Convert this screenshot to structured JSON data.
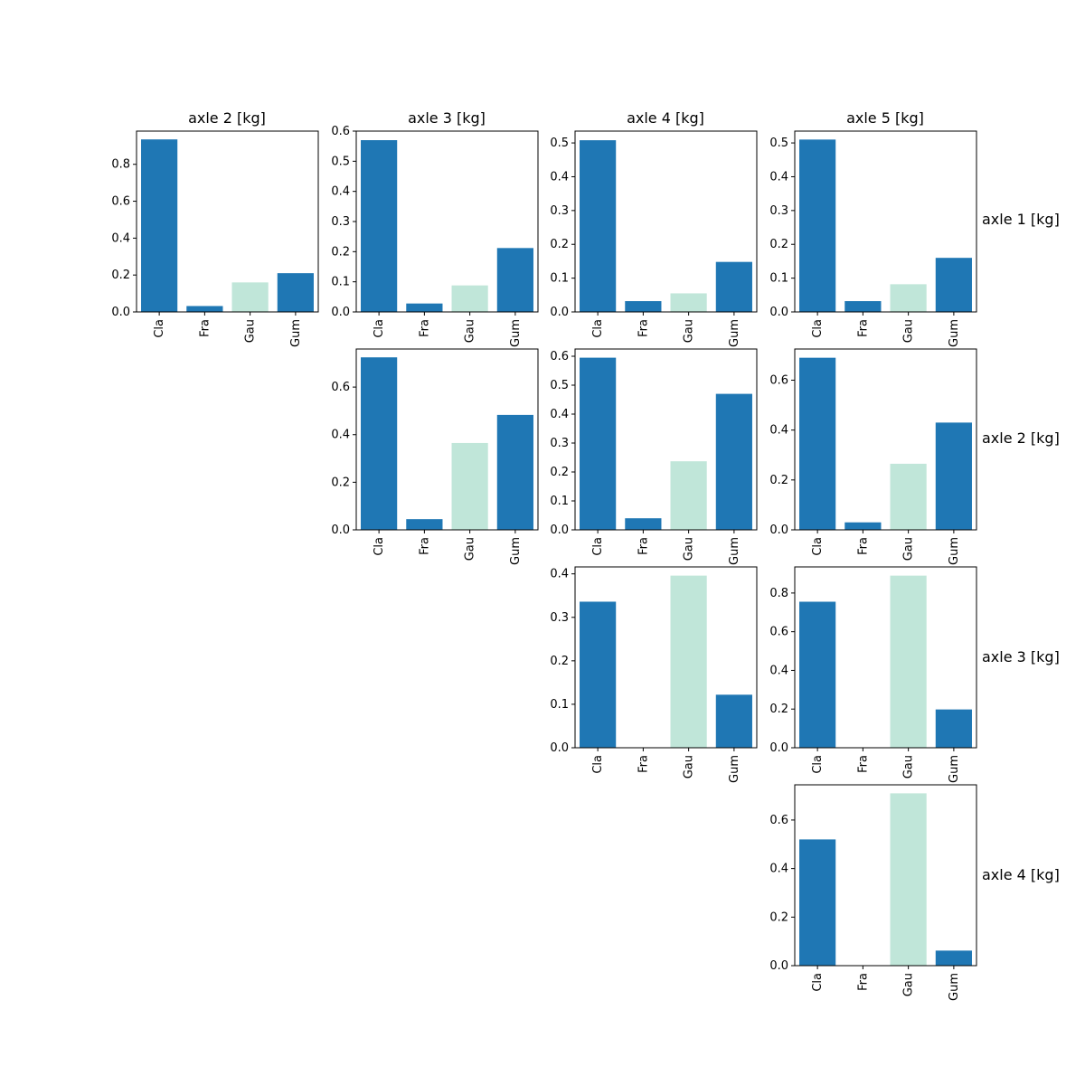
{
  "figure": {
    "column_titles": [
      "axle 2 [kg]",
      "axle 3 [kg]",
      "axle 4 [kg]",
      "axle 5 [kg]"
    ],
    "row_titles": [
      "axle 1 [kg]",
      "axle 2 [kg]",
      "axle 3 [kg]",
      "axle 4 [kg]"
    ]
  },
  "colors": {
    "primary": "#1f77b4",
    "highlight": "#c0e6d9"
  },
  "chart_data": [
    {
      "type": "bar",
      "row": 0,
      "col": 0,
      "categories": [
        "Cla",
        "Fra",
        "Gau",
        "Gum"
      ],
      "values": [
        0.935,
        0.032,
        0.16,
        0.21
      ],
      "ylim": [
        0,
        0.98
      ],
      "yticks": [
        0.0,
        0.2,
        0.4,
        0.6,
        0.8
      ],
      "highlight_category": "Gau",
      "grid": false
    },
    {
      "type": "bar",
      "row": 0,
      "col": 1,
      "categories": [
        "Cla",
        "Fra",
        "Gau",
        "Gum"
      ],
      "values": [
        0.57,
        0.028,
        0.088,
        0.212
      ],
      "ylim": [
        0,
        0.6
      ],
      "yticks": [
        0.0,
        0.1,
        0.2,
        0.3,
        0.4,
        0.5,
        0.6
      ],
      "highlight_category": "Gau",
      "grid": false
    },
    {
      "type": "bar",
      "row": 0,
      "col": 2,
      "categories": [
        "Cla",
        "Fra",
        "Gau",
        "Gum"
      ],
      "values": [
        0.508,
        0.032,
        0.055,
        0.148
      ],
      "ylim": [
        0,
        0.535
      ],
      "yticks": [
        0.0,
        0.1,
        0.2,
        0.3,
        0.4,
        0.5
      ],
      "highlight_category": "Gau",
      "grid": false
    },
    {
      "type": "bar",
      "row": 0,
      "col": 3,
      "categories": [
        "Cla",
        "Fra",
        "Gau",
        "Gum"
      ],
      "values": [
        0.51,
        0.032,
        0.082,
        0.16
      ],
      "ylim": [
        0,
        0.535
      ],
      "yticks": [
        0.0,
        0.1,
        0.2,
        0.3,
        0.4,
        0.5
      ],
      "highlight_category": "Gau",
      "grid": false
    },
    {
      "type": "bar",
      "row": 1,
      "col": 1,
      "categories": [
        "Cla",
        "Fra",
        "Gau",
        "Gum"
      ],
      "values": [
        0.725,
        0.045,
        0.365,
        0.483
      ],
      "ylim": [
        0,
        0.76
      ],
      "yticks": [
        0.0,
        0.2,
        0.4,
        0.6
      ],
      "highlight_category": "Gau",
      "grid": false
    },
    {
      "type": "bar",
      "row": 1,
      "col": 2,
      "categories": [
        "Cla",
        "Fra",
        "Gau",
        "Gum"
      ],
      "values": [
        0.595,
        0.04,
        0.237,
        0.47
      ],
      "ylim": [
        0,
        0.625
      ],
      "yticks": [
        0.0,
        0.1,
        0.2,
        0.3,
        0.4,
        0.5,
        0.6
      ],
      "highlight_category": "Gau",
      "grid": false
    },
    {
      "type": "bar",
      "row": 1,
      "col": 3,
      "categories": [
        "Cla",
        "Fra",
        "Gau",
        "Gum"
      ],
      "values": [
        0.69,
        0.03,
        0.265,
        0.43
      ],
      "ylim": [
        0,
        0.725
      ],
      "yticks": [
        0.0,
        0.2,
        0.4,
        0.6
      ],
      "highlight_category": "Gau",
      "grid": false
    },
    {
      "type": "bar",
      "row": 2,
      "col": 2,
      "categories": [
        "Cla",
        "Fra",
        "Gau",
        "Gum"
      ],
      "values": [
        0.336,
        0.0,
        0.396,
        0.122
      ],
      "ylim": [
        0,
        0.416
      ],
      "yticks": [
        0.0,
        0.1,
        0.2,
        0.3,
        0.4
      ],
      "highlight_category": "Gau",
      "grid": false
    },
    {
      "type": "bar",
      "row": 2,
      "col": 3,
      "categories": [
        "Cla",
        "Fra",
        "Gau",
        "Gum"
      ],
      "values": [
        0.755,
        0.0,
        0.89,
        0.198
      ],
      "ylim": [
        0,
        0.935
      ],
      "yticks": [
        0.0,
        0.2,
        0.4,
        0.6,
        0.8
      ],
      "highlight_category": "Gau",
      "grid": false
    },
    {
      "type": "bar",
      "row": 3,
      "col": 3,
      "categories": [
        "Cla",
        "Fra",
        "Gau",
        "Gum"
      ],
      "values": [
        0.52,
        0.0,
        0.71,
        0.062
      ],
      "ylim": [
        0,
        0.745
      ],
      "yticks": [
        0.0,
        0.2,
        0.4,
        0.6
      ],
      "highlight_category": "Gau",
      "grid": false
    }
  ]
}
